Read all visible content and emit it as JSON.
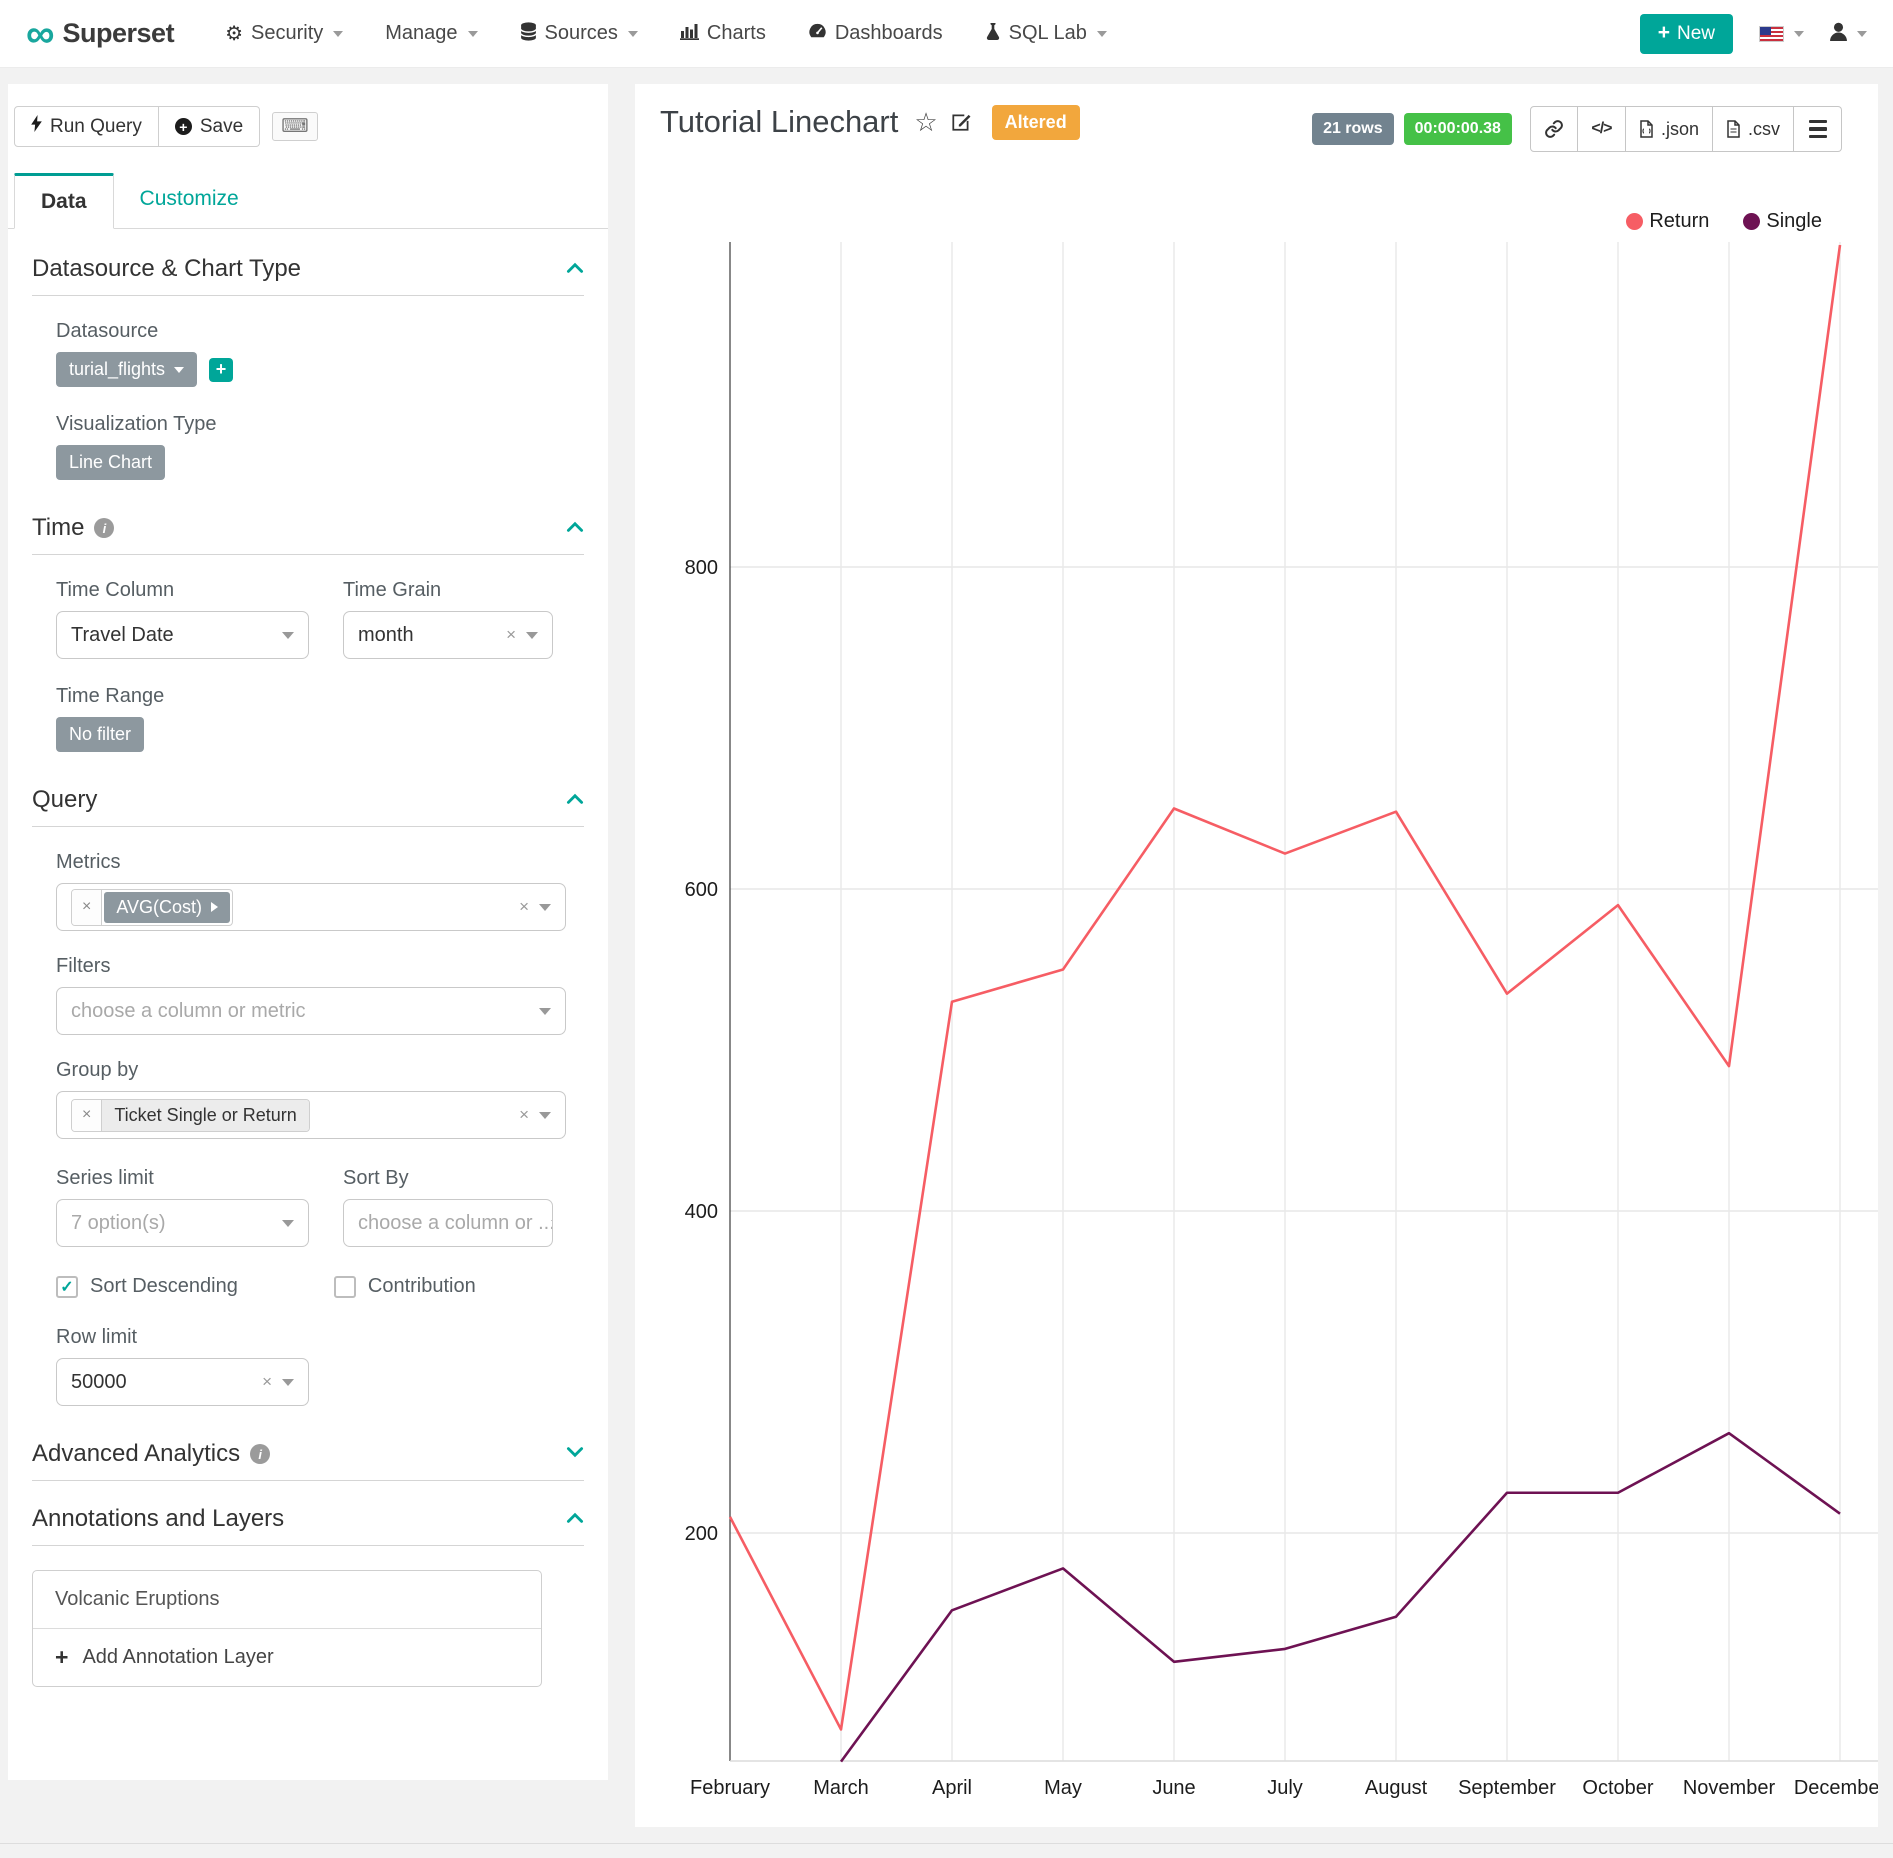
{
  "navbar": {
    "brand": "Superset",
    "items": [
      {
        "label": "Security",
        "icon": "gears-icon",
        "caret": true
      },
      {
        "label": "Manage",
        "icon": null,
        "caret": true
      },
      {
        "label": "Sources",
        "icon": "database-icon",
        "caret": true
      },
      {
        "label": "Charts",
        "icon": "bar-chart-icon",
        "caret": false
      },
      {
        "label": "Dashboards",
        "icon": "gauge-icon",
        "caret": false
      },
      {
        "label": "SQL Lab",
        "icon": "flask-icon",
        "caret": true
      }
    ],
    "new_button_label": "New"
  },
  "panel": {
    "run_query_label": "Run Query",
    "save_label": "Save",
    "tabs": {
      "data": "Data",
      "customize": "Customize"
    },
    "datasource_section": {
      "title": "Datasource & Chart Type",
      "datasource_label": "Datasource",
      "datasource_value": "turial_flights",
      "viz_type_label": "Visualization Type",
      "viz_type_value": "Line Chart"
    },
    "time_section": {
      "title": "Time",
      "time_column_label": "Time Column",
      "time_column_value": "Travel Date",
      "time_grain_label": "Time Grain",
      "time_grain_value": "month",
      "time_range_label": "Time Range",
      "time_range_value": "No filter"
    },
    "query_section": {
      "title": "Query",
      "metrics_label": "Metrics",
      "metric_token": "AVG(Cost)",
      "filters_label": "Filters",
      "filters_placeholder": "choose a column or metric",
      "group_by_label": "Group by",
      "group_by_token": "Ticket Single or Return",
      "series_limit_label": "Series limit",
      "series_limit_value": "7 option(s)",
      "sort_by_label": "Sort By",
      "sort_by_placeholder": "choose a column or ...",
      "sort_descending_label": "Sort Descending",
      "sort_descending_checked": true,
      "contribution_label": "Contribution",
      "contribution_checked": false,
      "row_limit_label": "Row limit",
      "row_limit_value": "50000"
    },
    "advanced_section": {
      "title": "Advanced Analytics"
    },
    "annotations_section": {
      "title": "Annotations and Layers",
      "layer_name": "Volcanic Eruptions",
      "add_label": "Add Annotation Layer"
    }
  },
  "chart_header": {
    "title": "Tutorial Linechart",
    "altered_badge": "Altered",
    "rows_badge": "21 rows",
    "timer_badge": "00:00:00.38",
    "export_json_label": ".json",
    "export_csv_label": ".csv"
  },
  "chart_data": {
    "type": "line",
    "title": "Tutorial Linechart",
    "x": [
      "February",
      "March",
      "April",
      "May",
      "June",
      "July",
      "August",
      "September",
      "October",
      "November",
      "December"
    ],
    "series": [
      {
        "name": "Return",
        "color": "#f65d64",
        "values": [
          210,
          78,
          530,
          550,
          650,
          622,
          648,
          535,
          590,
          490,
          1000
        ]
      },
      {
        "name": "Single",
        "color": "#6e1253",
        "values": [
          null,
          58,
          152,
          178,
          120,
          128,
          148,
          225,
          225,
          262,
          212
        ]
      }
    ],
    "yticks": [
      200,
      400,
      600,
      800
    ],
    "ylim": [
      58,
      1002
    ],
    "grid": true,
    "legend_position": "top-right"
  },
  "colors": {
    "accent": "#00a699",
    "return_series": "#f65d64",
    "single_series": "#6e1253",
    "altered_badge_bg": "#f2a73d",
    "rows_badge_bg": "#72838f",
    "timer_badge_bg": "#45c147",
    "pill_bg": "#8d989f"
  }
}
